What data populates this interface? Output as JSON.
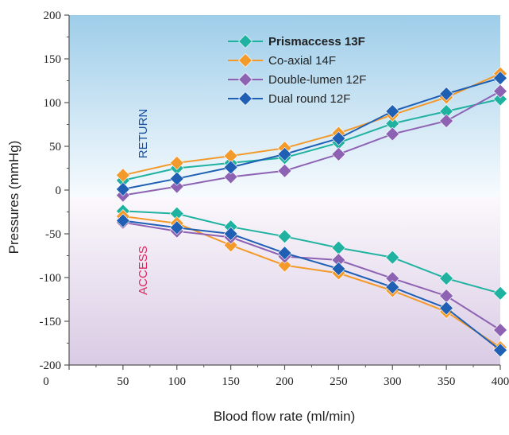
{
  "chart_data": {
    "type": "line",
    "x": [
      50,
      100,
      150,
      200,
      250,
      300,
      350,
      400
    ],
    "xlabel": "Blood flow rate (ml/min)",
    "ylabel": "Pressures (mmHg)",
    "xlim": [
      0,
      400
    ],
    "ylim": [
      -200,
      200
    ],
    "x_ticks": [
      "0",
      "50",
      "100",
      "150",
      "200",
      "250",
      "300",
      "350",
      "400"
    ],
    "y_ticks": [
      "200",
      "150",
      "100",
      "50",
      "0",
      "-50",
      "-100",
      "-150",
      "-200"
    ],
    "grid": false,
    "legend_position": "top-center",
    "background": {
      "upper_color": "#9ecde9",
      "lower_color": "#d9cbe4"
    },
    "annotations": {
      "return": {
        "text": "RETURN",
        "color": "#1a4f9c"
      },
      "access": {
        "text": "ACCESS",
        "color": "#e0245e"
      }
    },
    "series": [
      {
        "name": "Prismaccess 13F",
        "color": "#20b2a0",
        "bold": true,
        "return": [
          11,
          25,
          31,
          37,
          54,
          76,
          90,
          104
        ],
        "access": [
          -24,
          -27,
          -42,
          -53,
          -66,
          -77,
          -101,
          -118
        ]
      },
      {
        "name": "Co-axial 14F",
        "color": "#f39a2b",
        "bold": false,
        "return": [
          17,
          31,
          39,
          48,
          65,
          86,
          106,
          133
        ],
        "access": [
          -30,
          -38,
          -63,
          -86,
          -95,
          -115,
          -139,
          -180
        ]
      },
      {
        "name": "Double-lumen 12F",
        "color": "#8e62b3",
        "bold": false,
        "return": [
          -6,
          4,
          15,
          22,
          41,
          64,
          79,
          113
        ],
        "access": [
          -37,
          -47,
          -54,
          -76,
          -80,
          -101,
          -121,
          -160
        ]
      },
      {
        "name": "Dual round 12F",
        "color": "#1f5fb4",
        "bold": false,
        "return": [
          1,
          13,
          26,
          41,
          59,
          90,
          110,
          128
        ],
        "access": [
          -35,
          -43,
          -50,
          -72,
          -90,
          -111,
          -135,
          -183
        ]
      }
    ]
  }
}
